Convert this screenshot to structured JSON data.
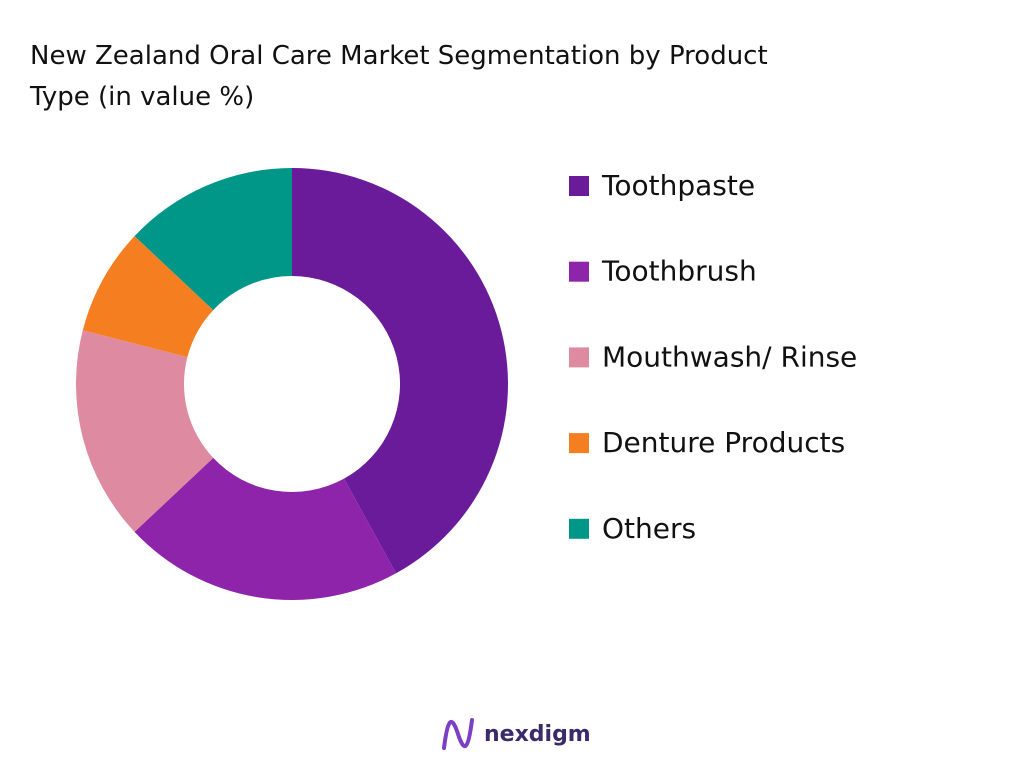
{
  "chart_data": {
    "type": "donut",
    "title": "New Zealand Oral Care Market Segmentation by Product Type (in value %)",
    "categories": [
      "Toothpaste",
      "Toothbrush",
      "Mouthwash/ Rinse",
      "Denture Products",
      "Others"
    ],
    "values": [
      42,
      21,
      16,
      8,
      13
    ],
    "colors": [
      "#6a1b9a",
      "#8e24aa",
      "#de8aa0",
      "#f57f20",
      "#009688"
    ],
    "legend": "right"
  },
  "brand": "nexdigm"
}
